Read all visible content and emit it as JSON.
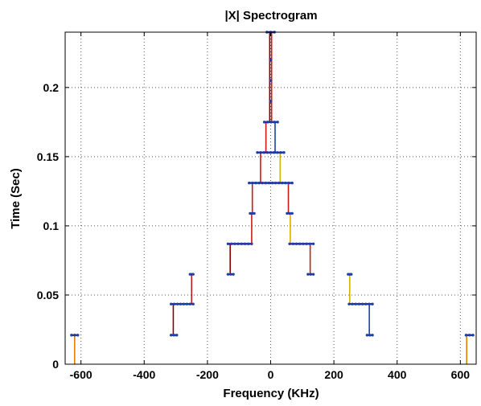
{
  "chart_data": {
    "type": "line",
    "title": "|X| Spectrogram",
    "xlabel": "Frequency (KHz)",
    "ylabel": "Time (Sec)",
    "xlim": [
      -650,
      650
    ],
    "ylim": [
      0,
      0.24
    ],
    "x_ticks": [
      -600,
      -400,
      -200,
      0,
      200,
      400,
      600
    ],
    "x_tick_labels": [
      "-600",
      "-400",
      "-200",
      "0",
      "200",
      "400",
      "600"
    ],
    "y_ticks": [
      0,
      0.05,
      0.1,
      0.15,
      0.2
    ],
    "y_tick_labels": [
      "0",
      "0.05",
      "0.1",
      "0.15",
      "0.2"
    ],
    "grid": true,
    "colors": {
      "plateau": "#1a237e",
      "marker": "#1f3fa8",
      "step_dark": "#8b0000",
      "step_red": "#cc1a1a",
      "step_yellow": "#d4b000",
      "step_orange": "#e08000"
    },
    "plateaus": [
      {
        "t": 0.021,
        "x": [
          -630,
          -610
        ]
      },
      {
        "t": 0.021,
        "x": [
          -315,
          -297
        ]
      },
      {
        "t": 0.021,
        "x": [
          305,
          322
        ]
      },
      {
        "t": 0.021,
        "x": [
          618,
          640
        ]
      },
      {
        "t": 0.0435,
        "x": [
          -315,
          -245
        ]
      },
      {
        "t": 0.0435,
        "x": [
          248,
          322
        ]
      },
      {
        "t": 0.065,
        "x": [
          -255,
          -245
        ]
      },
      {
        "t": 0.065,
        "x": [
          245,
          255
        ]
      },
      {
        "t": 0.065,
        "x": [
          -135,
          -118
        ]
      },
      {
        "t": 0.065,
        "x": [
          118,
          135
        ]
      },
      {
        "t": 0.087,
        "x": [
          -135,
          -60
        ]
      },
      {
        "t": 0.087,
        "x": [
          60,
          135
        ]
      },
      {
        "t": 0.109,
        "x": [
          -65,
          -52
        ]
      },
      {
        "t": 0.109,
        "x": [
          52,
          68
        ]
      },
      {
        "t": 0.131,
        "x": [
          -68,
          68
        ]
      },
      {
        "t": 0.153,
        "x": [
          -42,
          42
        ]
      },
      {
        "t": 0.175,
        "x": [
          -20,
          22
        ]
      },
      {
        "t": 0.24,
        "x": [
          -12,
          12
        ]
      }
    ],
    "steps": [
      {
        "x": -620,
        "t": [
          0,
          0.021
        ],
        "color": "orange"
      },
      {
        "x": 620,
        "t": [
          0,
          0.021
        ],
        "color": "orange"
      },
      {
        "x": -308,
        "t": [
          0.021,
          0.0435
        ],
        "color": "dark"
      },
      {
        "x": 312,
        "t": [
          0.021,
          0.0435
        ],
        "color": "marker"
      },
      {
        "x": -250,
        "t": [
          0.0435,
          0.065
        ],
        "color": "red"
      },
      {
        "x": 250,
        "t": [
          0.0435,
          0.065
        ],
        "color": "yellow"
      },
      {
        "x": -128,
        "t": [
          0.065,
          0.087
        ],
        "color": "dark"
      },
      {
        "x": 125,
        "t": [
          0.065,
          0.087
        ],
        "color": "red"
      },
      {
        "x": -60,
        "t": [
          0.087,
          0.109
        ],
        "color": "red"
      },
      {
        "x": 62,
        "t": [
          0.087,
          0.109
        ],
        "color": "yellow"
      },
      {
        "x": -58,
        "t": [
          0.109,
          0.131
        ],
        "color": "red"
      },
      {
        "x": 56,
        "t": [
          0.109,
          0.131
        ],
        "color": "red"
      },
      {
        "x": -32,
        "t": [
          0.131,
          0.153
        ],
        "color": "red"
      },
      {
        "x": 30,
        "t": [
          0.131,
          0.153
        ],
        "color": "yellow"
      },
      {
        "x": -15,
        "t": [
          0.153,
          0.175
        ],
        "color": "red"
      },
      {
        "x": 14,
        "t": [
          0.153,
          0.175
        ],
        "color": "marker"
      },
      {
        "x": -3,
        "t": [
          0.175,
          0.24
        ],
        "color": "dark"
      },
      {
        "x": 3,
        "t": [
          0.175,
          0.24
        ],
        "color": "red"
      }
    ]
  }
}
